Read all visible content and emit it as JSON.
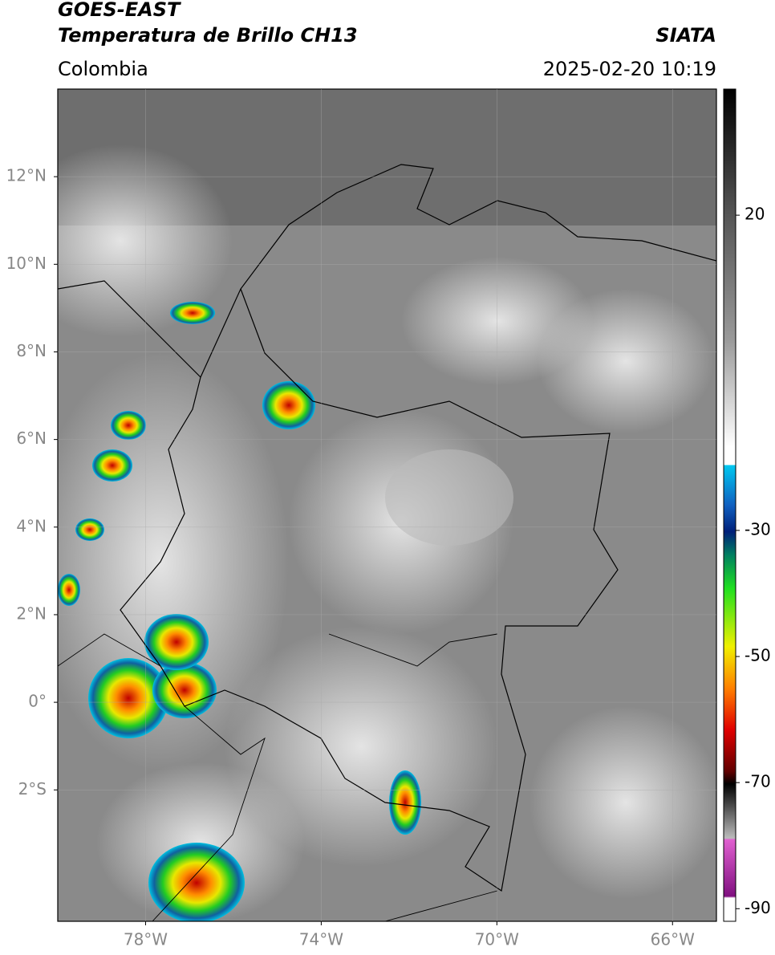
{
  "header": {
    "title": "GOES-EAST",
    "subtitle": "Temperatura de Brillo CH13",
    "region": "Colombia",
    "source": "SIATA",
    "datetime": "2025-02-20 10:19"
  },
  "map": {
    "xlim": [
      -80,
      -65
    ],
    "ylim": [
      -5,
      14
    ],
    "xticks": [
      {
        "value": -78,
        "label": "78°W"
      },
      {
        "value": -74,
        "label": "74°W"
      },
      {
        "value": -70,
        "label": "70°W"
      },
      {
        "value": -66,
        "label": "66°W"
      }
    ],
    "yticks": [
      {
        "value": 12,
        "label": "12°N"
      },
      {
        "value": 10,
        "label": "10°N"
      },
      {
        "value": 8,
        "label": "8°N"
      },
      {
        "value": 6,
        "label": "6°N"
      },
      {
        "value": 4,
        "label": "4°N"
      },
      {
        "value": 2,
        "label": "2°N"
      },
      {
        "value": 0,
        "label": "0°"
      },
      {
        "value": -2,
        "label": "2°S"
      }
    ]
  },
  "colorbar": {
    "lim": [
      -92,
      40
    ],
    "ticks": [
      20,
      -30,
      -50,
      -70,
      -90
    ]
  }
}
